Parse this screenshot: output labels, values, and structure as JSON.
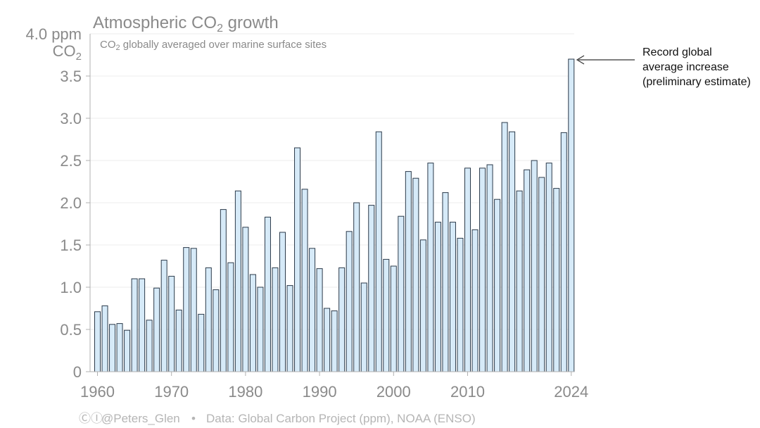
{
  "chart_data": {
    "type": "bar",
    "title": "Atmospheric CO",
    "title_subscript": "2",
    "title_suffix": " growth",
    "subtitle_prefix": "CO",
    "subtitle_subscript": "2",
    "subtitle_suffix": " globally averaged over marine surface sites",
    "ylabel_top": "4.0 ppm",
    "ylabel_unit": "CO",
    "ylabel_unit_subscript": "2",
    "ylim": [
      0,
      4.0
    ],
    "yticks": [
      "0",
      "0.5",
      "1.0",
      "1.5",
      "2.0",
      "2.5",
      "3.0",
      "3.5"
    ],
    "xticks": [
      "1960",
      "1970",
      "1980",
      "1990",
      "2000",
      "2010",
      "2024"
    ],
    "grid": true,
    "years": [
      1960,
      1961,
      1962,
      1963,
      1964,
      1965,
      1966,
      1967,
      1968,
      1969,
      1970,
      1971,
      1972,
      1973,
      1974,
      1975,
      1976,
      1977,
      1978,
      1979,
      1980,
      1981,
      1982,
      1983,
      1984,
      1985,
      1986,
      1987,
      1988,
      1989,
      1990,
      1991,
      1992,
      1993,
      1994,
      1995,
      1996,
      1997,
      1998,
      1999,
      2000,
      2001,
      2002,
      2003,
      2004,
      2005,
      2006,
      2007,
      2008,
      2009,
      2010,
      2011,
      2012,
      2013,
      2014,
      2015,
      2016,
      2017,
      2018,
      2019,
      2020,
      2021,
      2022,
      2023,
      2024
    ],
    "values": [
      0.71,
      0.78,
      0.56,
      0.57,
      0.49,
      1.1,
      1.1,
      0.61,
      0.99,
      1.32,
      1.13,
      0.73,
      1.47,
      1.46,
      0.68,
      1.23,
      0.97,
      1.92,
      1.29,
      2.14,
      1.71,
      1.15,
      1.0,
      1.83,
      1.23,
      1.65,
      1.02,
      2.65,
      2.16,
      1.46,
      1.22,
      0.75,
      0.72,
      1.23,
      1.66,
      2.0,
      1.05,
      1.97,
      2.84,
      1.33,
      1.25,
      1.84,
      2.37,
      2.29,
      1.56,
      2.47,
      1.77,
      2.12,
      1.77,
      1.58,
      2.41,
      1.68,
      2.41,
      2.45,
      2.04,
      2.95,
      2.84,
      2.14,
      2.39,
      2.5,
      2.3,
      2.47,
      2.17,
      2.83,
      3.7
    ],
    "annotation": [
      "Record global",
      "average increase",
      "(preliminary estimate)"
    ],
    "bar_fill": "#d6eaf8",
    "bar_stroke": "#2b3a4a",
    "grid_color": "#eeeeee"
  },
  "footer": {
    "cc_icons": "ⒸⒾ",
    "handle": "@Peters_Glen",
    "separator": "•",
    "source": "Data: Global Carbon Project (ppm), NOAA (ENSO)"
  }
}
